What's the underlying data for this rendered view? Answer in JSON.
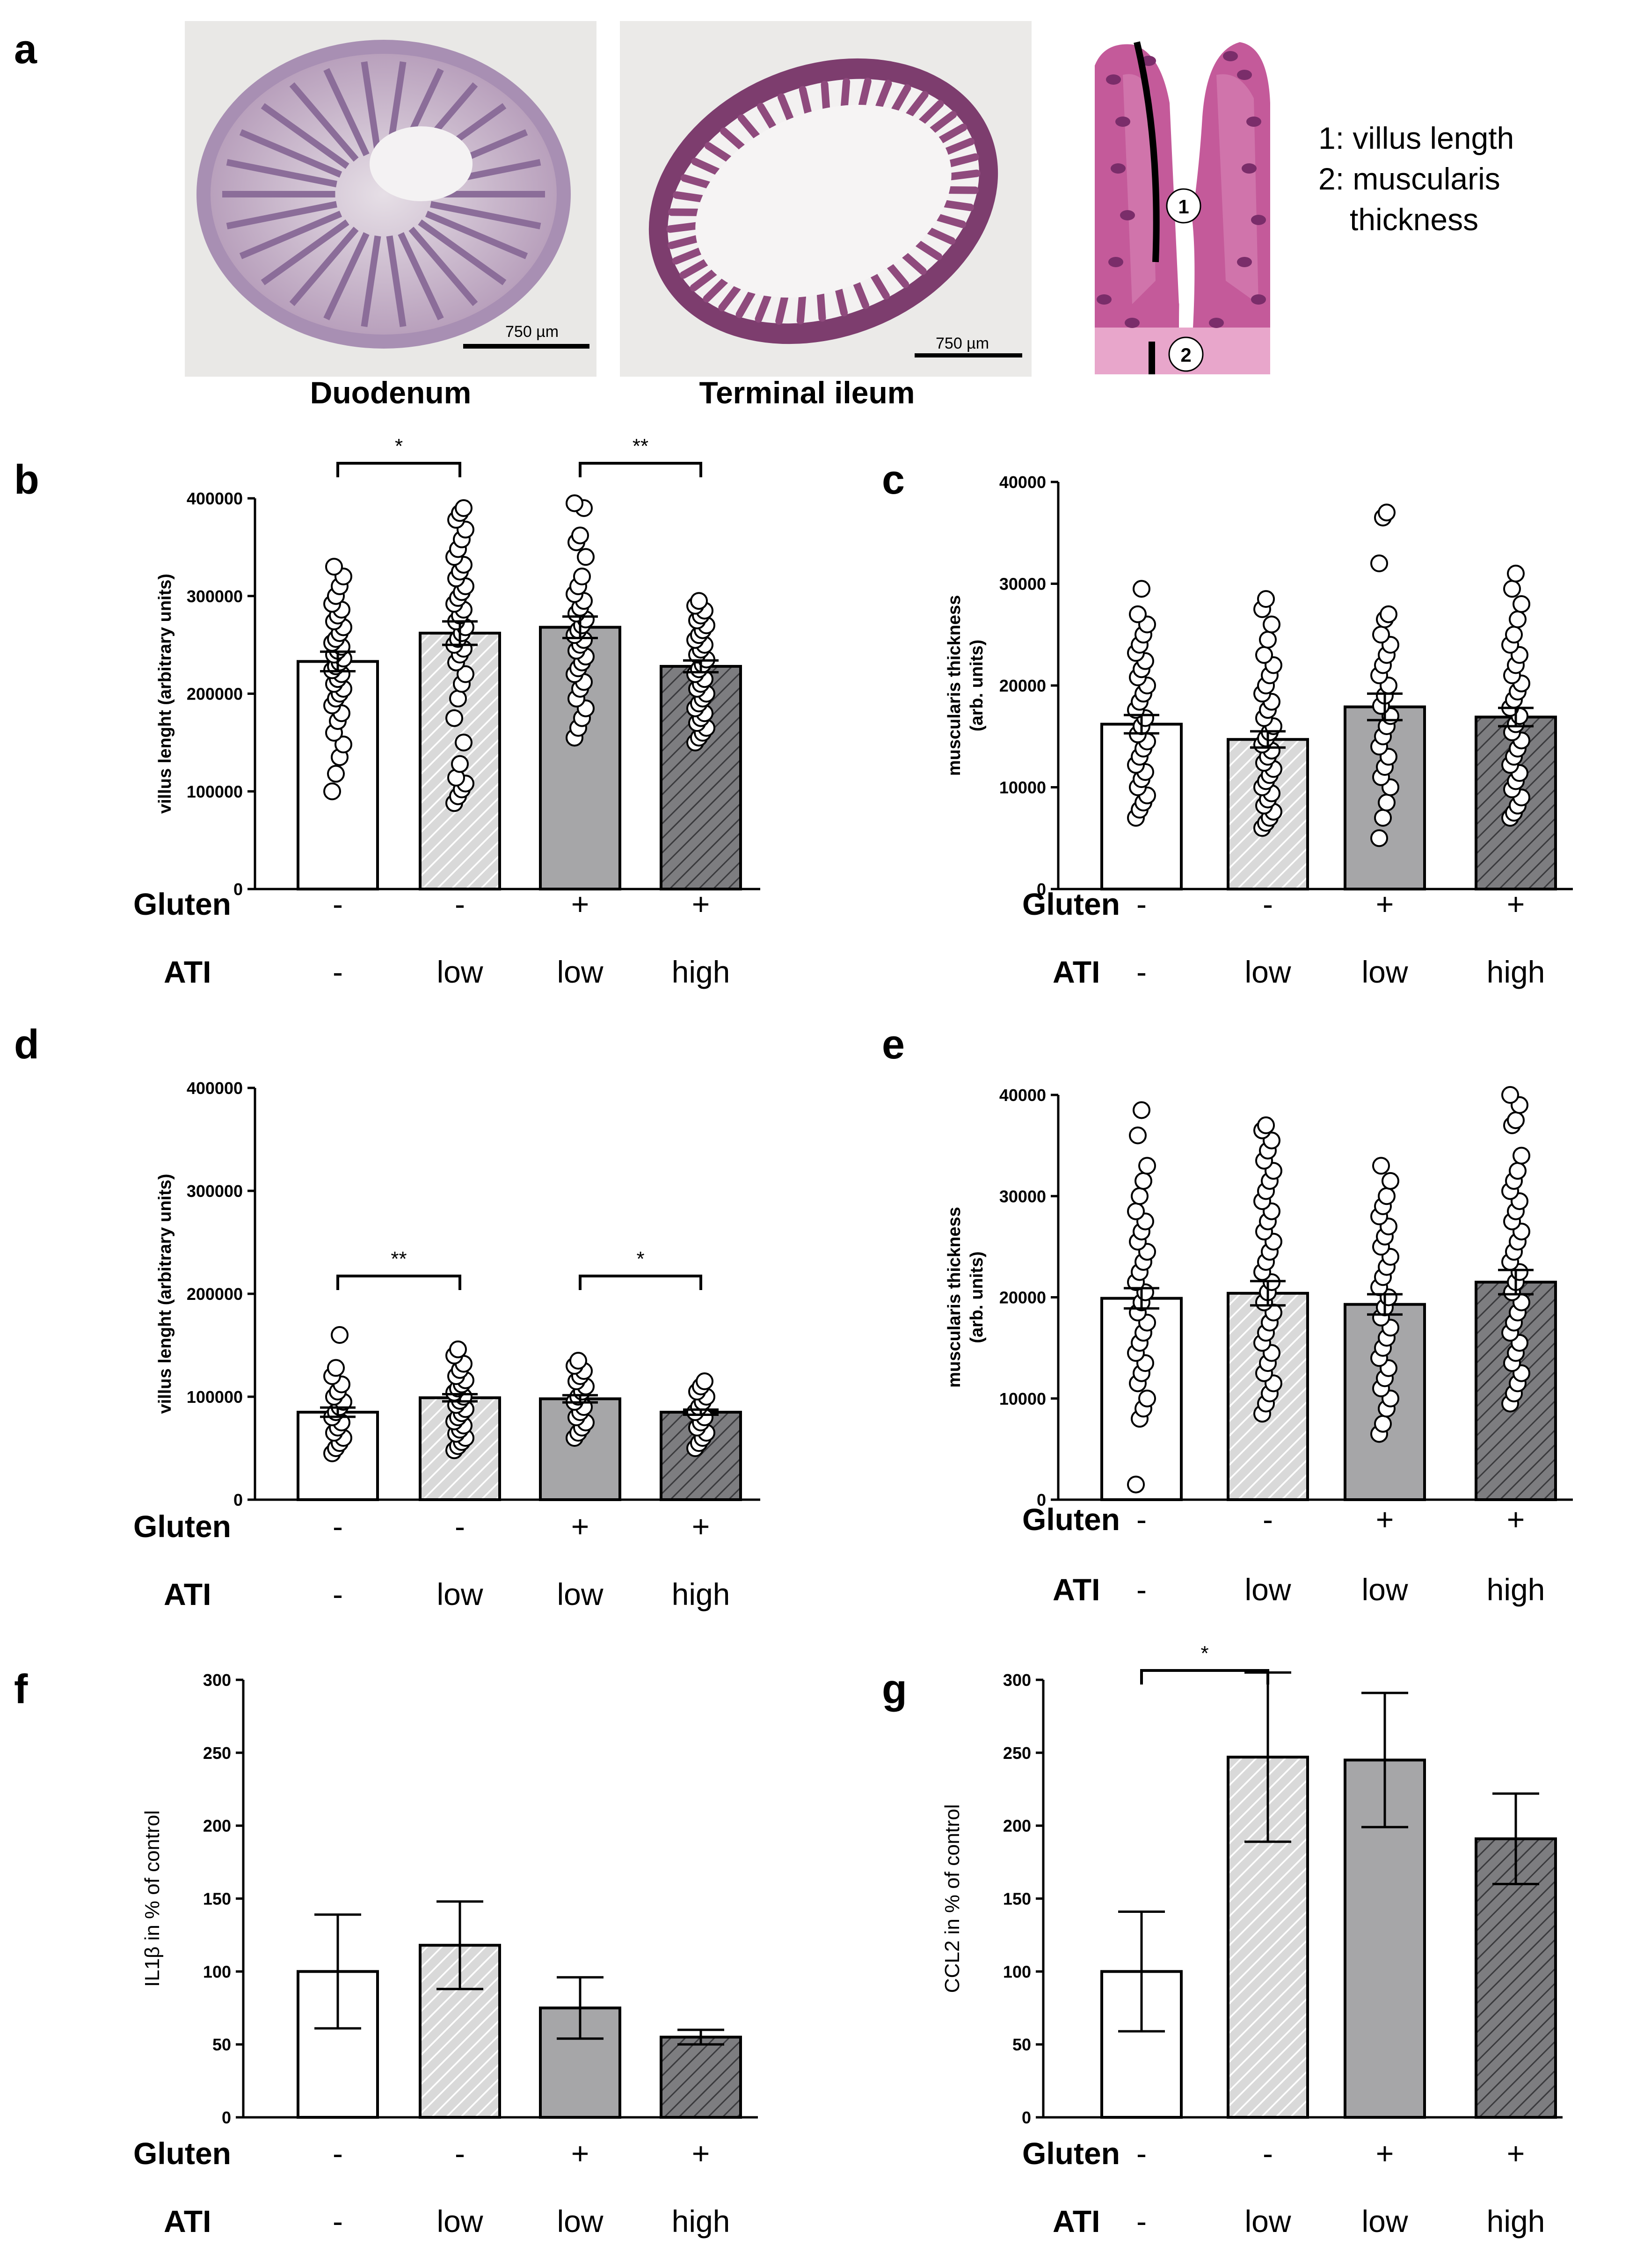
{
  "figure": {
    "panel_a": {
      "letter": "a",
      "images": [
        {
          "name": "Duodenum",
          "scale_bar": "750 µm"
        },
        {
          "name": "Terminal ileum",
          "scale_bar": "750 µm"
        }
      ],
      "villus_markers": [
        "1",
        "2"
      ],
      "legend": [
        "1: villus length",
        "2: muscularis",
        "thickness"
      ]
    },
    "conditions": {
      "gluten_label": "Gluten",
      "ati_label": "ATI",
      "gluten": [
        "-",
        "-",
        "+",
        "+"
      ],
      "ati": [
        "-",
        "low",
        "low",
        "high"
      ]
    },
    "colors": {
      "group1": "#ffffff",
      "group2": "#d9d9d9",
      "group3": "#a6a6a8",
      "group4": "#7d7d80",
      "stroke": "#000000",
      "hatch": "#ffffff"
    }
  },
  "chart_data": [
    {
      "panel": "b",
      "type": "bar",
      "ylabel": "villus lenght (arbitrary units)",
      "ylim": [
        0,
        400000
      ],
      "yticks": [
        "0",
        "100000",
        "200000",
        "300000",
        "400000"
      ],
      "categories": [
        "-/-",
        "-/low",
        "+/low",
        "+/high"
      ],
      "values": [
        233000,
        262000,
        268000,
        228000
      ],
      "errors": [
        10000,
        12000,
        11000,
        6000
      ],
      "significance": [
        {
          "from": 0,
          "to": 1,
          "label": "*"
        },
        {
          "from": 2,
          "to": 3,
          "label": "**"
        }
      ],
      "points": [
        [
          100000,
          118000,
          135000,
          148000,
          160000,
          172000,
          180000,
          188000,
          195000,
          200000,
          205000,
          210000,
          215000,
          220000,
          224000,
          228000,
          232000,
          236000,
          240000,
          244000,
          248000,
          252000,
          256000,
          262000,
          268000,
          274000,
          280000,
          286000,
          292000,
          300000,
          310000,
          320000,
          330000
        ],
        [
          88000,
          95000,
          102000,
          108000,
          114000,
          128000,
          150000,
          175000,
          195000,
          210000,
          220000,
          232000,
          240000,
          246000,
          250000,
          256000,
          262000,
          268000,
          274000,
          280000,
          286000,
          292000,
          298000,
          304000,
          310000,
          318000,
          325000,
          332000,
          340000,
          348000,
          358000,
          368000,
          378000,
          385000,
          390000
        ],
        [
          155000,
          165000,
          175000,
          185000,
          195000,
          205000,
          212000,
          220000,
          226000,
          232000,
          238000,
          244000,
          250000,
          255000,
          260000,
          265000,
          270000,
          276000,
          282000,
          288000,
          295000,
          302000,
          310000,
          320000,
          340000,
          355000,
          362000,
          390000,
          395000
        ],
        [
          150000,
          155000,
          160000,
          165000,
          170000,
          175000,
          180000,
          185000,
          190000,
          195000,
          200000,
          205000,
          210000,
          215000,
          220000,
          225000,
          230000,
          235000,
          240000,
          245000,
          250000,
          255000,
          260000,
          265000,
          270000,
          275000,
          280000,
          285000,
          290000,
          295000
        ]
      ]
    },
    {
      "panel": "c",
      "type": "bar",
      "ylabel": [
        "muscularis thickness",
        "(arb. units)"
      ],
      "ylim": [
        0,
        40000
      ],
      "yticks": [
        "0",
        "10000",
        "20000",
        "30000",
        "40000"
      ],
      "categories": [
        "-/-",
        "-/low",
        "+/low",
        "+/high"
      ],
      "values": [
        16200,
        14700,
        17900,
        16900
      ],
      "errors": [
        900,
        800,
        1300,
        900
      ],
      "significance": [],
      "points": [
        [
          7000,
          7800,
          8500,
          9200,
          10000,
          10800,
          11500,
          12200,
          13000,
          13800,
          14500,
          15200,
          16000,
          16800,
          17600,
          18400,
          19200,
          20000,
          20800,
          21600,
          22400,
          23200,
          24000,
          25000,
          26000,
          27000,
          29500
        ],
        [
          6000,
          6500,
          7000,
          7600,
          8200,
          8800,
          9400,
          10000,
          10600,
          11200,
          11800,
          12400,
          13000,
          13600,
          14200,
          14800,
          15400,
          16000,
          16800,
          17600,
          18400,
          19200,
          20000,
          21000,
          22000,
          23000,
          24500,
          26000,
          27500,
          28500
        ],
        [
          5000,
          7000,
          8500,
          10000,
          11000,
          12000,
          13000,
          14000,
          15000,
          16000,
          17000,
          18000,
          19000,
          20000,
          21000,
          22000,
          23000,
          24000,
          25000,
          26500,
          27000,
          32000,
          36500,
          37000
        ],
        [
          7000,
          7500,
          8200,
          9000,
          9800,
          10600,
          11400,
          12200,
          13000,
          13800,
          14600,
          15400,
          16200,
          17000,
          17800,
          18600,
          19400,
          20200,
          21000,
          22000,
          23000,
          24000,
          25000,
          26500,
          28000,
          29500,
          31000
        ]
      ]
    },
    {
      "panel": "d",
      "type": "bar",
      "ylabel": "villus lenght (arbitrary units)",
      "ylim": [
        0,
        400000
      ],
      "yticks": [
        "0",
        "100000",
        "200000",
        "300000",
        "400000"
      ],
      "categories": [
        "-/-",
        "-/low",
        "+/low",
        "+/high"
      ],
      "values": [
        85000,
        99000,
        98000,
        85000
      ],
      "errors": [
        4500,
        3500,
        3500,
        2500
      ],
      "significance": [
        {
          "from": 0,
          "to": 1,
          "label": "**"
        },
        {
          "from": 2,
          "to": 3,
          "label": "*"
        }
      ],
      "points": [
        [
          45000,
          50000,
          55000,
          60000,
          65000,
          70000,
          75000,
          80000,
          85000,
          90000,
          95000,
          100000,
          105000,
          112000,
          120000,
          128000,
          160000
        ],
        [
          48000,
          52000,
          56000,
          60000,
          64000,
          68000,
          72000,
          76000,
          80000,
          84000,
          88000,
          92000,
          96000,
          100000,
          104000,
          108000,
          112000,
          116000,
          120000,
          126000,
          132000,
          140000,
          146000
        ],
        [
          60000,
          65000,
          70000,
          75000,
          80000,
          85000,
          90000,
          95000,
          100000,
          105000,
          110000,
          115000,
          120000,
          125000,
          130000,
          135000
        ],
        [
          50000,
          55000,
          60000,
          65000,
          70000,
          75000,
          80000,
          85000,
          90000,
          95000,
          100000,
          105000,
          110000,
          115000
        ]
      ]
    },
    {
      "panel": "e",
      "type": "bar",
      "ylabel": [
        "muscularis thickness",
        "(arb. units)"
      ],
      "ylim": [
        0,
        40000
      ],
      "yticks": [
        "0",
        "10000",
        "20000",
        "30000",
        "40000"
      ],
      "categories": [
        "-/-",
        "-/low",
        "+/low",
        "+/high"
      ],
      "values": [
        19900,
        20400,
        19300,
        21500
      ],
      "errors": [
        1000,
        1200,
        1000,
        1200
      ],
      "significance": [],
      "points": [
        [
          1500,
          8000,
          9000,
          10000,
          11500,
          12500,
          13500,
          14500,
          15500,
          16500,
          17500,
          18500,
          19500,
          20500,
          21500,
          22500,
          23500,
          24500,
          25500,
          26500,
          27500,
          28500,
          30000,
          31500,
          33000,
          36000,
          38500
        ],
        [
          8500,
          9500,
          10500,
          11500,
          12500,
          13500,
          14500,
          15500,
          16500,
          17500,
          18500,
          19500,
          20500,
          21500,
          22500,
          23500,
          24500,
          25500,
          26500,
          27500,
          28500,
          29500,
          30500,
          31500,
          32500,
          33500,
          34500,
          35500,
          36500,
          37000
        ],
        [
          6500,
          7500,
          9000,
          10000,
          11000,
          12000,
          13000,
          14000,
          15000,
          16000,
          17000,
          18000,
          19000,
          20000,
          21000,
          22000,
          23000,
          24000,
          25000,
          26000,
          27000,
          28000,
          29000,
          30000,
          31500,
          33000
        ],
        [
          9500,
          10500,
          11500,
          12500,
          13500,
          14500,
          15500,
          16500,
          17500,
          18500,
          19500,
          20500,
          21500,
          22500,
          23500,
          24500,
          25500,
          26500,
          27500,
          28500,
          29500,
          30500,
          31500,
          32500,
          34000,
          37000,
          37500,
          39000,
          40000
        ]
      ]
    },
    {
      "panel": "f",
      "type": "bar",
      "ylabel": "IL1β in % of control",
      "ylim": [
        0,
        300
      ],
      "yticks": [
        "0",
        "50",
        "100",
        "150",
        "200",
        "250",
        "300"
      ],
      "categories": [
        "-/-",
        "-/low",
        "+/low",
        "+/high"
      ],
      "values": [
        100,
        118,
        75,
        55
      ],
      "errors": [
        39,
        30,
        21,
        5
      ],
      "significance": [],
      "points": []
    },
    {
      "panel": "g",
      "type": "bar",
      "ylabel": "CCL2 in % of control",
      "ylim": [
        0,
        300
      ],
      "yticks": [
        "0",
        "50",
        "100",
        "150",
        "200",
        "250",
        "300"
      ],
      "categories": [
        "-/-",
        "-/low",
        "+/low",
        "+/high"
      ],
      "values": [
        100,
        247,
        245,
        191
      ],
      "errors": [
        41,
        58,
        46,
        31
      ],
      "significance": [
        {
          "from": 0,
          "to": 1,
          "label": "*"
        }
      ],
      "points": []
    }
  ]
}
